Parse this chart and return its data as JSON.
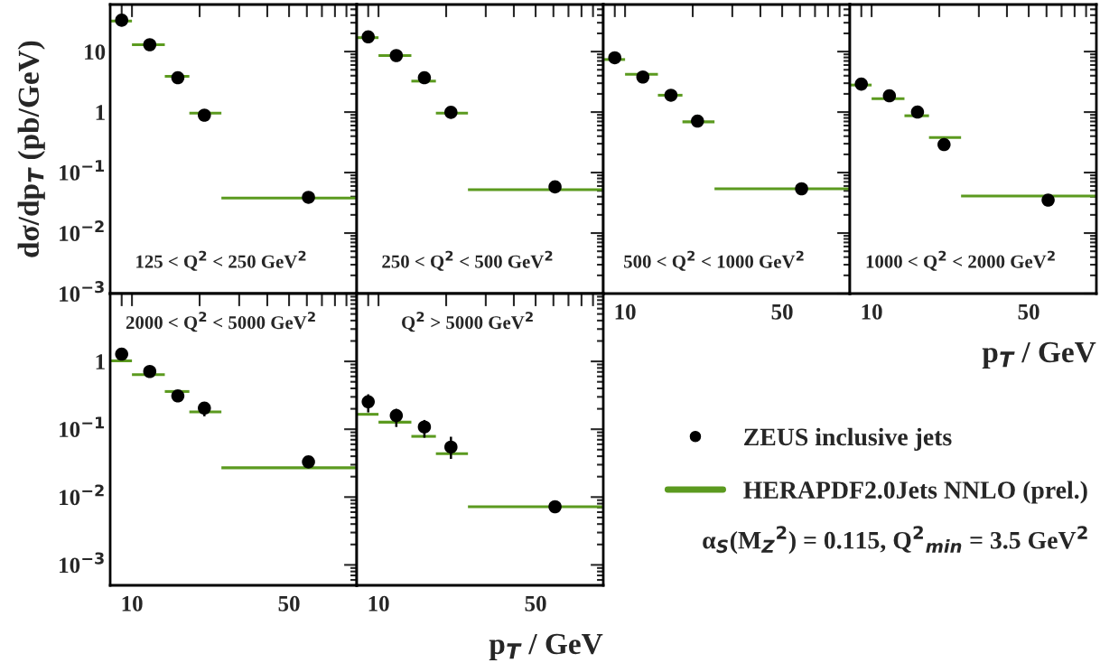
{
  "chart_data": [
    {
      "type": "scatter",
      "annotations": [
        "125 < Q$^{2}$ < 250 GeV$^{2}$"
      ],
      "ylabel": "dσ/dp$_{T}$ (pb/GeV)",
      "log": "xy",
      "tick_labels": "y",
      "x": [
        9,
        12,
        16,
        21,
        61
      ],
      "xlim": [
        8,
        100
      ],
      "xticks": [
        {
          "value": 9,
          "label": null
        },
        10,
        {
          "value": 20,
          "label": null
        },
        {
          "value": 30,
          "label": null
        },
        {
          "value": 40,
          "label": null
        },
        50,
        {
          "value": 60,
          "label": null
        },
        {
          "value": 70,
          "label": null
        },
        {
          "value": 80,
          "label": null
        },
        {
          "value": 90,
          "label": null
        }
      ],
      "ylim": [
        0.001,
        60
      ],
      "yticks": [
        {
          "value": 0.001,
          "label": "10$^{−3}$"
        },
        {
          "value": 0.01,
          "label": "10$^{−2}$"
        },
        {
          "value": 0.1,
          "label": "10$^{−1}$"
        },
        1,
        10
      ],
      "series": [
        {
          "marker": "circle",
          "color": "#000000",
          "values": [
            33,
            13,
            3.7,
            0.89,
            0.039
          ]
        },
        {
          "type": "line",
          "color": "#5b9a1f",
          "x": [
            8,
            10
          ],
          "values": [
            32,
            32
          ]
        },
        {
          "type": "line",
          "color": "#5b9a1f",
          "x": [
            10,
            14
          ],
          "values": [
            13,
            13
          ]
        },
        {
          "type": "line",
          "color": "#5b9a1f",
          "x": [
            14,
            18
          ],
          "values": [
            3.9,
            3.9
          ]
        },
        {
          "type": "line",
          "color": "#5b9a1f",
          "x": [
            18,
            25
          ],
          "values": [
            0.96,
            0.96
          ]
        },
        {
          "type": "line",
          "color": "#5b9a1f",
          "x": [
            25,
            100
          ],
          "values": [
            0.038,
            0.038
          ]
        }
      ]
    },
    {
      "type": "scatter",
      "annotations": [
        "250 < Q$^{2}$ < 500 GeV$^{2}$"
      ],
      "log": "xy",
      "tick_labels": false,
      "x": [
        9,
        12,
        16,
        21,
        61
      ],
      "xlim": [
        8,
        100
      ],
      "xticks": [
        {
          "value": 9,
          "label": null
        },
        10,
        {
          "value": 20,
          "label": null
        },
        {
          "value": 30,
          "label": null
        },
        {
          "value": 40,
          "label": null
        },
        50,
        {
          "value": 60,
          "label": null
        },
        {
          "value": 70,
          "label": null
        },
        {
          "value": 80,
          "label": null
        },
        {
          "value": 90,
          "label": null
        }
      ],
      "ylim": [
        0.001,
        60
      ],
      "yticks": [
        0.001,
        0.01,
        0.1,
        1,
        10
      ],
      "series": [
        {
          "marker": "circle",
          "color": "#000000",
          "values": [
            17.5,
            8.6,
            3.7,
            0.99,
            0.058
          ]
        },
        {
          "type": "line",
          "color": "#5b9a1f",
          "x": [
            8,
            10
          ],
          "values": [
            17,
            17
          ]
        },
        {
          "type": "line",
          "color": "#5b9a1f",
          "x": [
            10,
            14
          ],
          "values": [
            8.6,
            8.6
          ]
        },
        {
          "type": "line",
          "color": "#5b9a1f",
          "x": [
            14,
            18
          ],
          "values": [
            3.25,
            3.25
          ]
        },
        {
          "type": "line",
          "color": "#5b9a1f",
          "x": [
            18,
            25
          ],
          "values": [
            0.96,
            0.96
          ]
        },
        {
          "type": "line",
          "color": "#5b9a1f",
          "x": [
            25,
            100
          ],
          "values": [
            0.052,
            0.052
          ]
        }
      ]
    },
    {
      "type": "scatter",
      "annotations": [
        "500 < Q$^{2}$ < 1000 GeV$^{2}$"
      ],
      "log": "xy",
      "tick_labels": "x",
      "x": [
        9,
        12,
        16,
        21,
        61
      ],
      "xlim": [
        8,
        100
      ],
      "xticks": [
        {
          "value": 9,
          "label": null
        },
        10,
        {
          "value": 20,
          "label": null
        },
        {
          "value": 30,
          "label": null
        },
        {
          "value": 40,
          "label": null
        },
        50,
        {
          "value": 60,
          "label": null
        },
        {
          "value": 70,
          "label": null
        },
        {
          "value": 80,
          "label": null
        },
        {
          "value": 90,
          "label": null
        }
      ],
      "ylim": [
        0.001,
        60
      ],
      "yticks": [
        0.001,
        0.01,
        0.1,
        1,
        10
      ],
      "series": [
        {
          "marker": "circle",
          "color": "#000000",
          "values": [
            7.9,
            3.8,
            1.9,
            0.71,
            0.054
          ]
        },
        {
          "type": "line",
          "color": "#5b9a1f",
          "x": [
            8,
            10
          ],
          "values": [
            7.4,
            7.4
          ]
        },
        {
          "type": "line",
          "color": "#5b9a1f",
          "x": [
            10,
            14
          ],
          "values": [
            4.2,
            4.2
          ]
        },
        {
          "type": "line",
          "color": "#5b9a1f",
          "x": [
            14,
            18
          ],
          "values": [
            1.9,
            1.9
          ]
        },
        {
          "type": "line",
          "color": "#5b9a1f",
          "x": [
            18,
            25
          ],
          "values": [
            0.69,
            0.69
          ]
        },
        {
          "type": "line",
          "color": "#5b9a1f",
          "x": [
            25,
            100
          ],
          "values": [
            0.054,
            0.054
          ]
        }
      ]
    },
    {
      "type": "scatter",
      "annotations": [
        "1000 < Q$^{2}$ < 2000 GeV$^{2}$"
      ],
      "xlabel": "p$_{T}$ / GeV",
      "log": "xy",
      "tick_labels": "x",
      "x": [
        9,
        12,
        16,
        21,
        61
      ],
      "xlim": [
        8,
        100
      ],
      "xticks": [
        {
          "value": 9,
          "label": null
        },
        10,
        {
          "value": 20,
          "label": null
        },
        {
          "value": 30,
          "label": null
        },
        {
          "value": 40,
          "label": null
        },
        50,
        {
          "value": 60,
          "label": null
        },
        {
          "value": 70,
          "label": null
        },
        {
          "value": 80,
          "label": null
        },
        {
          "value": 90,
          "label": null
        }
      ],
      "ylim": [
        0.001,
        60
      ],
      "yticks": [
        0.001,
        0.01,
        0.1,
        1,
        10
      ],
      "series": [
        {
          "marker": "circle",
          "color": "#000000",
          "values": [
            2.9,
            1.86,
            1.0,
            0.29,
            0.035
          ]
        },
        {
          "type": "line",
          "color": "#5b9a1f",
          "x": [
            8,
            10
          ],
          "values": [
            2.8,
            2.8
          ]
        },
        {
          "type": "line",
          "color": "#5b9a1f",
          "x": [
            10,
            14
          ],
          "values": [
            1.67,
            1.67
          ]
        },
        {
          "type": "line",
          "color": "#5b9a1f",
          "x": [
            14,
            18
          ],
          "values": [
            0.87,
            0.87
          ]
        },
        {
          "type": "line",
          "color": "#5b9a1f",
          "x": [
            18,
            25
          ],
          "values": [
            0.38,
            0.38
          ]
        },
        {
          "type": "line",
          "color": "#5b9a1f",
          "x": [
            25,
            100
          ],
          "values": [
            0.041,
            0.041
          ]
        }
      ]
    },
    {
      "type": "scatter",
      "annotations": [
        "2000 < Q$^{2}$ < 5000 GeV$^{2}$"
      ],
      "log": "xy",
      "x": [
        9,
        12,
        16,
        21,
        61
      ],
      "xlim": [
        8,
        100
      ],
      "xticks": [
        {
          "value": 9,
          "label": null
        },
        10,
        {
          "value": 20,
          "label": null
        },
        {
          "value": 30,
          "label": null
        },
        {
          "value": 40,
          "label": null
        },
        50,
        {
          "value": 60,
          "label": null
        },
        {
          "value": 70,
          "label": null
        },
        {
          "value": 80,
          "label": null
        },
        {
          "value": 90,
          "label": null
        }
      ],
      "ylim": [
        0.0005,
        10
      ],
      "yticks": [
        {
          "value": 0.001,
          "label": "10$^{−3}$"
        },
        {
          "value": 0.01,
          "label": "10$^{−2}$"
        },
        {
          "value": 0.1,
          "label": "10$^{−1}$"
        },
        1,
        {
          "value": 10,
          "label": null
        }
      ],
      "series": [
        {
          "marker": "circle",
          "color": "#000000",
          "values": [
            1.28,
            0.71,
            0.31,
            0.205,
            0.033
          ],
          "errors": [
            null,
            null,
            [
              0.26,
              0.35
            ],
            [
              0.155,
              0.23
            ],
            null
          ]
        },
        {
          "type": "line",
          "color": "#5b9a1f",
          "x": [
            8,
            10
          ],
          "values": [
            1.02,
            1.02
          ]
        },
        {
          "type": "line",
          "color": "#5b9a1f",
          "x": [
            10,
            14
          ],
          "values": [
            0.64,
            0.64
          ]
        },
        {
          "type": "line",
          "color": "#5b9a1f",
          "x": [
            14,
            18
          ],
          "values": [
            0.36,
            0.36
          ]
        },
        {
          "type": "line",
          "color": "#5b9a1f",
          "x": [
            18,
            25
          ],
          "values": [
            0.18,
            0.18
          ]
        },
        {
          "type": "line",
          "color": "#5b9a1f",
          "x": [
            25,
            100
          ],
          "values": [
            0.027,
            0.027
          ]
        }
      ]
    },
    {
      "type": "scatter",
      "annotations": [
        "Q$^{2}$ > 5000 GeV$^{2}$",
        "α$_{S}$(M$_{Z}$$^{2}$) = 0.115, Q$^{2}$$_{min}$ = 3.5 GeV$^{2}$"
      ],
      "xlabel": "p$_{T}$ / GeV",
      "log": "xy",
      "tick_labels": "x",
      "legend": "right",
      "x": [
        9,
        12,
        16,
        21,
        61
      ],
      "xlim": [
        8,
        100
      ],
      "xticks": [
        {
          "value": 9,
          "label": null
        },
        10,
        {
          "value": 20,
          "label": null
        },
        {
          "value": 30,
          "label": null
        },
        {
          "value": 40,
          "label": null
        },
        50,
        {
          "value": 60,
          "label": null
        },
        {
          "value": 70,
          "label": null
        },
        {
          "value": 80,
          "label": null
        },
        {
          "value": 90,
          "label": null
        }
      ],
      "ylim": [
        0.0005,
        10
      ],
      "yticks": [
        0.001,
        0.01,
        0.1,
        1,
        10
      ],
      "series": [
        {
          "name": "ZEUS inclusive jets",
          "marker": "circle",
          "color": "#000000",
          "values": [
            0.254,
            0.159,
            0.108,
            0.0546,
            0.0072
          ],
          "errors": [
            [
              0.177,
              0.327
            ],
            [
              0.108,
              0.2
            ],
            [
              0.075,
              0.137
            ],
            [
              0.0366,
              0.0775
            ],
            [
              0.0062,
              0.0083
            ]
          ]
        },
        {
          "type": "line",
          "name": "HERAPDF2.0Jets NNLO (prel.)",
          "color": "#5b9a1f",
          "x": [
            8,
            10
          ],
          "values": [
            0.166,
            0.166
          ]
        },
        {
          "type": "line",
          "color": "#5b9a1f",
          "x": [
            10,
            14
          ],
          "values": [
            0.127,
            0.127
          ]
        },
        {
          "type": "line",
          "color": "#5b9a1f",
          "x": [
            14,
            18
          ],
          "values": [
            0.0785,
            0.0785
          ]
        },
        {
          "type": "line",
          "color": "#5b9a1f",
          "x": [
            18,
            25
          ],
          "values": [
            0.0436,
            0.0436
          ]
        },
        {
          "type": "line",
          "color": "#5b9a1f",
          "x": [
            25,
            100
          ],
          "values": [
            0.0072,
            0.0072
          ]
        }
      ]
    }
  ]
}
